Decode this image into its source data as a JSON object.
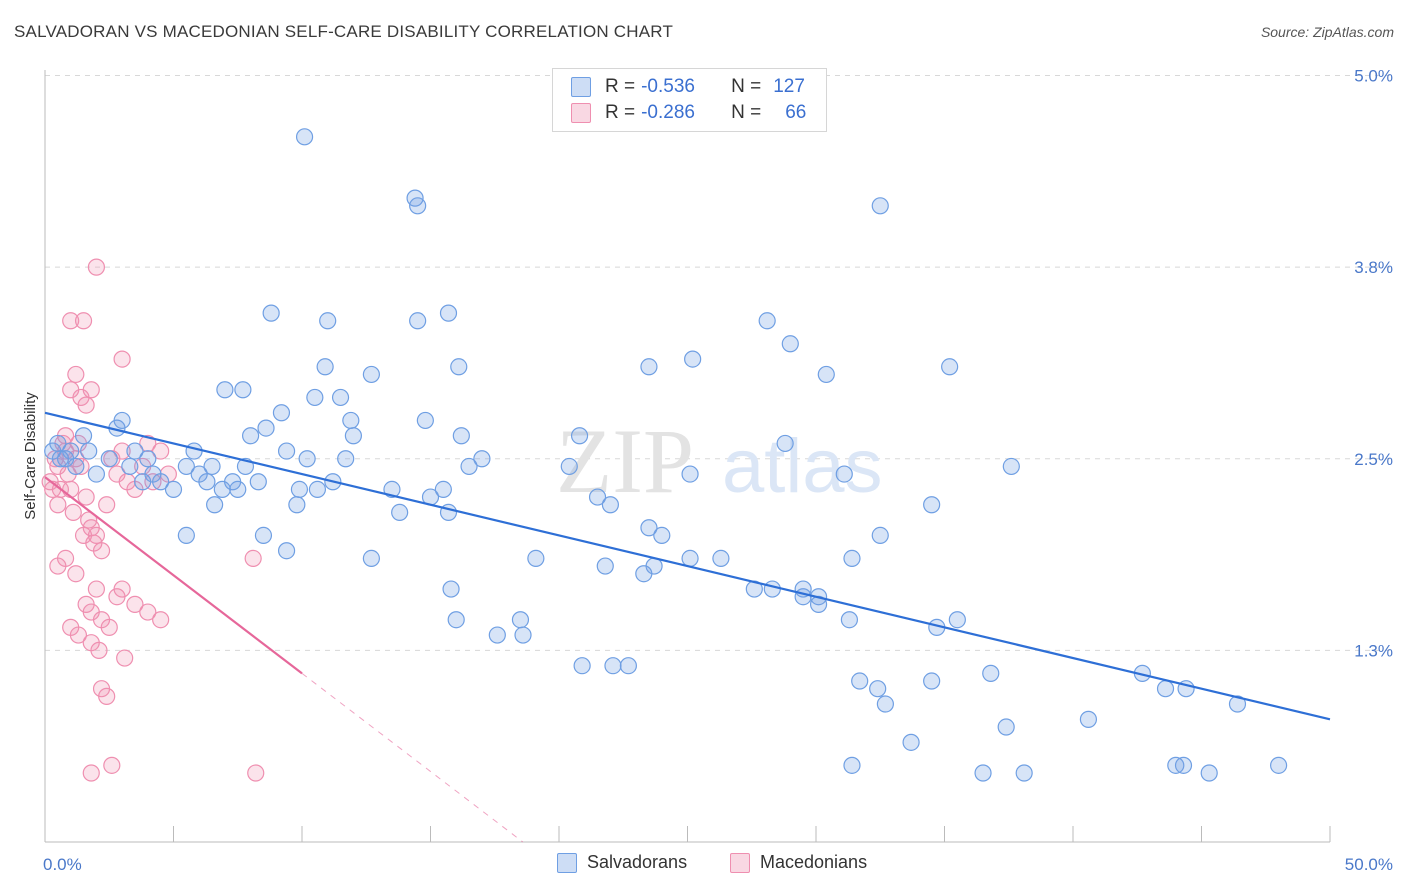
{
  "header": {
    "title": "SALVADORAN VS MACEDONIAN SELF-CARE DISABILITY CORRELATION CHART",
    "source": "Source: ZipAtlas.com"
  },
  "watermark": {
    "zip": "ZIP",
    "atlas": "atlas"
  },
  "legend": {
    "rows": [
      {
        "r_label": "R =",
        "r_value": "-0.536",
        "n_label": "N =",
        "n_value": "127",
        "color": "#6f9fe3"
      },
      {
        "r_label": "R =",
        "r_value": "-0.286",
        "n_label": "N =",
        "n_value": "66",
        "color": "#ef8fb0"
      }
    ]
  },
  "bottom_legend": {
    "items": [
      "Salvadorans",
      "Macedonians"
    ]
  },
  "colors": {
    "blue_fill": "rgba(111,159,227,0.28)",
    "blue_stroke": "#6f9fe3",
    "blue_line": "#2e6fd6",
    "pink_fill": "rgba(239,143,176,0.25)",
    "pink_stroke": "#ef8fb0",
    "pink_line": "#e6679a",
    "grid": "#d8d8d8",
    "tick_text": "#4a78c9"
  },
  "chart_data": {
    "type": "scatter",
    "title": "SALVADORAN VS MACEDONIAN SELF-CARE DISABILITY CORRELATION CHART",
    "xlabel": "",
    "ylabel": "Self-Care Disability",
    "xlim": [
      0,
      50
    ],
    "ylim": [
      0,
      5.2
    ],
    "x_tick_labels": [
      "0.0%",
      "50.0%"
    ],
    "y_ticks": [
      1.25,
      2.5,
      3.75,
      5.0
    ],
    "y_tick_labels": [
      "1.3%",
      "2.5%",
      "3.8%",
      "5.0%"
    ],
    "grid": true,
    "series": [
      {
        "name": "Salvadorans",
        "r": -0.536,
        "n": 127,
        "trend": {
          "x": [
            0,
            50
          ],
          "y": [
            2.8,
            0.8
          ]
        },
        "points": [
          [
            0.3,
            2.55
          ],
          [
            0.5,
            2.6
          ],
          [
            0.6,
            2.5
          ],
          [
            0.8,
            2.5
          ],
          [
            1,
            2.55
          ],
          [
            1.2,
            2.45
          ],
          [
            1.5,
            2.65
          ],
          [
            1.7,
            2.55
          ],
          [
            2,
            2.4
          ],
          [
            2.5,
            2.5
          ],
          [
            2.8,
            2.7
          ],
          [
            3,
            2.75
          ],
          [
            3.3,
            2.45
          ],
          [
            3.5,
            2.55
          ],
          [
            3.8,
            2.35
          ],
          [
            4,
            2.5
          ],
          [
            4.2,
            2.4
          ],
          [
            4.5,
            2.35
          ],
          [
            5,
            2.3
          ],
          [
            5.5,
            2.45
          ],
          [
            5.8,
            2.55
          ],
          [
            6,
            2.4
          ],
          [
            6.3,
            2.35
          ],
          [
            6.5,
            2.45
          ],
          [
            6.6,
            2.2
          ],
          [
            6.9,
            2.3
          ],
          [
            7,
            2.95
          ],
          [
            7.3,
            2.35
          ],
          [
            7.5,
            2.3
          ],
          [
            7.7,
            2.95
          ],
          [
            7.8,
            2.45
          ],
          [
            8,
            2.65
          ],
          [
            8.3,
            2.35
          ],
          [
            8.6,
            2.7
          ],
          [
            8.8,
            3.45
          ],
          [
            9.2,
            2.8
          ],
          [
            9.4,
            2.55
          ],
          [
            9.8,
            2.2
          ],
          [
            9.9,
            2.3
          ],
          [
            10.2,
            2.5
          ],
          [
            10.5,
            2.9
          ],
          [
            10.6,
            2.3
          ],
          [
            10.9,
            3.1
          ],
          [
            11,
            3.4
          ],
          [
            11.2,
            2.35
          ],
          [
            11.5,
            2.9
          ],
          [
            11.7,
            2.5
          ],
          [
            11.9,
            2.75
          ],
          [
            12,
            2.65
          ],
          [
            12.7,
            3.05
          ],
          [
            13.5,
            2.3
          ],
          [
            13.8,
            2.15
          ],
          [
            14.5,
            3.4
          ],
          [
            14.8,
            2.75
          ],
          [
            15,
            2.25
          ],
          [
            15.5,
            2.3
          ],
          [
            15.7,
            2.15
          ],
          [
            16.2,
            2.65
          ],
          [
            16.5,
            2.45
          ],
          [
            17,
            2.5
          ],
          [
            20.4,
            2.45
          ],
          [
            20.8,
            2.65
          ],
          [
            21.5,
            2.25
          ],
          [
            22,
            2.2
          ],
          [
            23.5,
            2.05
          ],
          [
            24,
            2.0
          ],
          [
            25.1,
            2.4
          ],
          [
            31.1,
            2.4
          ],
          [
            32.5,
            2.0
          ],
          [
            34.5,
            2.2
          ],
          [
            28.8,
            2.6
          ],
          [
            37.6,
            2.45
          ],
          [
            25.2,
            3.15
          ],
          [
            23.5,
            3.1
          ],
          [
            29.0,
            3.25
          ],
          [
            30.4,
            3.05
          ],
          [
            32.5,
            4.15
          ],
          [
            28.1,
            3.4
          ],
          [
            35.2,
            3.1
          ],
          [
            16.1,
            3.1
          ],
          [
            15.7,
            3.45
          ],
          [
            14.4,
            4.2
          ],
          [
            14.5,
            4.15
          ],
          [
            10.1,
            4.6
          ],
          [
            5.5,
            2.0
          ],
          [
            8.5,
            2.0
          ],
          [
            9.4,
            1.9
          ],
          [
            12.7,
            1.85
          ],
          [
            15.8,
            1.65
          ],
          [
            19.1,
            1.85
          ],
          [
            21.8,
            1.8
          ],
          [
            23.3,
            1.75
          ],
          [
            23.7,
            1.8
          ],
          [
            25.1,
            1.85
          ],
          [
            27.6,
            1.65
          ],
          [
            28.3,
            1.65
          ],
          [
            26.3,
            1.85
          ],
          [
            31.4,
            1.85
          ],
          [
            29.5,
            1.6
          ],
          [
            29.5,
            1.65
          ],
          [
            30.1,
            1.6
          ],
          [
            30.1,
            1.55
          ],
          [
            31.3,
            1.45
          ],
          [
            34.7,
            1.4
          ],
          [
            35.5,
            1.45
          ],
          [
            31.7,
            1.05
          ],
          [
            32.4,
            1.0
          ],
          [
            32.7,
            0.9
          ],
          [
            36.8,
            1.1
          ],
          [
            37.4,
            0.75
          ],
          [
            31.4,
            0.5
          ],
          [
            33.7,
            0.65
          ],
          [
            34.5,
            1.05
          ],
          [
            40.6,
            0.8
          ],
          [
            44.0,
            0.5
          ],
          [
            48.0,
            0.5
          ],
          [
            38.1,
            0.45
          ],
          [
            36.5,
            0.45
          ],
          [
            42.7,
            1.1
          ],
          [
            44.4,
            1.0
          ],
          [
            46.4,
            0.9
          ],
          [
            44.3,
            0.5
          ],
          [
            45.3,
            0.45
          ],
          [
            43.6,
            1.0
          ],
          [
            20.9,
            1.15
          ],
          [
            18.6,
            1.35
          ],
          [
            17.6,
            1.35
          ],
          [
            16.0,
            1.45
          ],
          [
            22.1,
            1.15
          ],
          [
            18.5,
            1.45
          ],
          [
            22.7,
            1.15
          ]
        ]
      },
      {
        "name": "Macedonians",
        "r": -0.286,
        "n": 66,
        "trend": {
          "x": [
            0,
            10
          ],
          "y": [
            2.38,
            1.1
          ]
        },
        "points": [
          [
            0.2,
            2.35
          ],
          [
            0.3,
            2.3
          ],
          [
            0.4,
            2.5
          ],
          [
            0.5,
            2.45
          ],
          [
            0.5,
            2.2
          ],
          [
            0.6,
            2.3
          ],
          [
            0.7,
            2.6
          ],
          [
            0.8,
            2.55
          ],
          [
            0.9,
            2.4
          ],
          [
            1.0,
            2.3
          ],
          [
            1.1,
            2.15
          ],
          [
            1.2,
            2.5
          ],
          [
            1.3,
            2.6
          ],
          [
            1.4,
            2.45
          ],
          [
            1.5,
            2.0
          ],
          [
            1.6,
            2.25
          ],
          [
            1.7,
            2.1
          ],
          [
            1.8,
            2.05
          ],
          [
            1.9,
            1.95
          ],
          [
            2.0,
            2.0
          ],
          [
            2.2,
            1.9
          ],
          [
            2.4,
            2.2
          ],
          [
            2.6,
            2.5
          ],
          [
            2.8,
            2.4
          ],
          [
            3.0,
            2.55
          ],
          [
            3.2,
            2.35
          ],
          [
            3.5,
            2.3
          ],
          [
            3.8,
            2.45
          ],
          [
            4.0,
            2.6
          ],
          [
            4.2,
            2.35
          ],
          [
            4.5,
            2.55
          ],
          [
            4.8,
            2.4
          ],
          [
            1.0,
            2.95
          ],
          [
            1.2,
            3.05
          ],
          [
            1.4,
            2.9
          ],
          [
            1.6,
            2.85
          ],
          [
            1.8,
            2.95
          ],
          [
            0.8,
            2.65
          ],
          [
            2.0,
            3.75
          ],
          [
            1.5,
            3.4
          ],
          [
            1.0,
            3.4
          ],
          [
            3.0,
            3.15
          ],
          [
            0.5,
            1.8
          ],
          [
            0.8,
            1.85
          ],
          [
            1.2,
            1.75
          ],
          [
            1.6,
            1.55
          ],
          [
            1.8,
            1.5
          ],
          [
            2.0,
            1.65
          ],
          [
            2.2,
            1.45
          ],
          [
            2.5,
            1.4
          ],
          [
            2.8,
            1.6
          ],
          [
            3.0,
            1.65
          ],
          [
            3.5,
            1.55
          ],
          [
            4.0,
            1.5
          ],
          [
            4.5,
            1.45
          ],
          [
            1.0,
            1.4
          ],
          [
            1.3,
            1.35
          ],
          [
            1.8,
            1.3
          ],
          [
            2.1,
            1.25
          ],
          [
            3.1,
            1.2
          ],
          [
            2.2,
            1.0
          ],
          [
            2.4,
            0.95
          ],
          [
            1.8,
            0.45
          ],
          [
            2.6,
            0.5
          ],
          [
            8.1,
            1.85
          ],
          [
            8.2,
            0.45
          ]
        ]
      }
    ]
  }
}
